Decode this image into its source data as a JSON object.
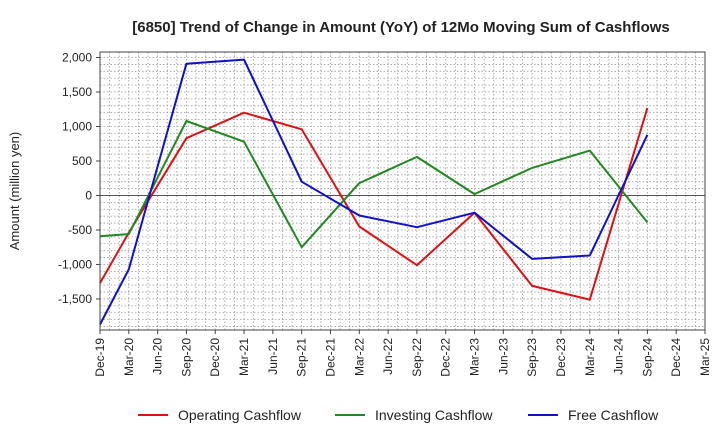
{
  "chart_data": {
    "type": "line",
    "title": "[6850]  Trend of Change in Amount (YoY) of 12Mo Moving Sum of Cashflows",
    "xlabel": "",
    "ylabel": "Amount (million yen)",
    "categories": [
      "Dec-19",
      "Mar-20",
      "Jun-20",
      "Sep-20",
      "Dec-20",
      "Mar-21",
      "Jun-21",
      "Sep-21",
      "Dec-21",
      "Mar-22",
      "Jun-22",
      "Sep-22",
      "Dec-22",
      "Mar-23",
      "Jun-23",
      "Sep-23",
      "Dec-23",
      "Mar-24",
      "Jun-24",
      "Sep-24",
      "Dec-24",
      "Mar-25"
    ],
    "ylim": [
      -1950,
      2080
    ],
    "yticks": [
      2000,
      1500,
      1000,
      500,
      0,
      -500,
      -1000,
      -1500
    ],
    "ytick_labels": [
      "2,000",
      "1,500",
      "1,000",
      "500",
      "0",
      "-500",
      "-1,000",
      "-1,500"
    ],
    "grid": true,
    "legend_position": "bottom",
    "series": [
      {
        "name": "Operating Cashflow",
        "color": "#dd1111",
        "values": [
          -1270,
          -540,
          null,
          830,
          null,
          1200,
          null,
          960,
          null,
          -450,
          null,
          -1010,
          null,
          -250,
          null,
          -1310,
          null,
          -1510,
          null,
          1270,
          null,
          null
        ]
      },
      {
        "name": "Investing Cashflow",
        "color": "#228822",
        "values": [
          -590,
          -560,
          null,
          1080,
          null,
          780,
          null,
          -750,
          null,
          180,
          null,
          560,
          null,
          20,
          null,
          400,
          null,
          650,
          null,
          -390,
          null,
          null
        ]
      },
      {
        "name": "Free Cashflow",
        "color": "#1111cc",
        "values": [
          -1870,
          -1070,
          null,
          1910,
          null,
          1970,
          null,
          200,
          null,
          -290,
          null,
          -460,
          null,
          -250,
          null,
          -920,
          null,
          -870,
          null,
          880,
          null,
          null
        ]
      }
    ]
  }
}
